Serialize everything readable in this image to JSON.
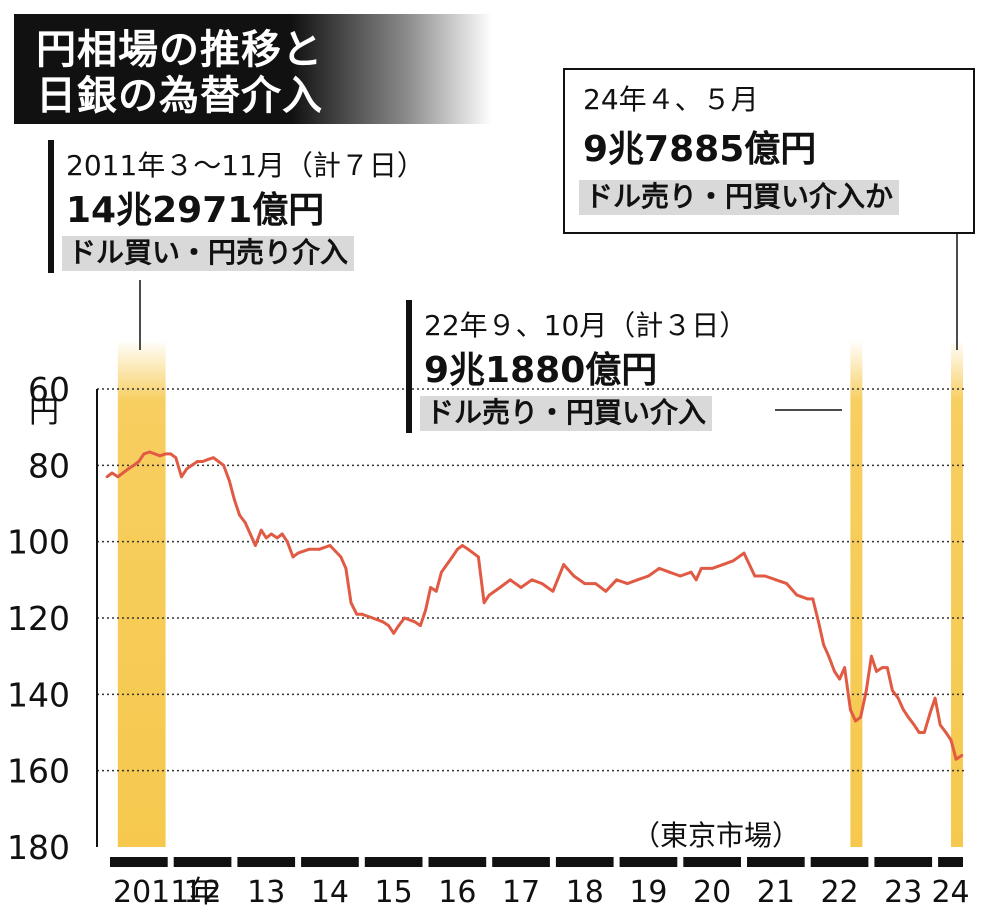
{
  "title": {
    "line1": "円相場の推移と",
    "line2": "日銀の為替介入"
  },
  "annotations": {
    "a2011": {
      "period": "2011年３～11月（計７日）",
      "amount": "14兆2971億円",
      "type": "ドル買い・円売り介入"
    },
    "a2022": {
      "period": "22年９、10月（計３日）",
      "amount": "9兆1880億円",
      "type": "ドル売り・円買い介入"
    },
    "a2024": {
      "period": "24年４、５月",
      "amount": "9兆7885億円",
      "type": "ドル売り・円買い介入か"
    }
  },
  "source": "（東京市場）",
  "colors": {
    "line": "#e05a44",
    "highlight": "#f6c94e",
    "grid": "#333333",
    "text": "#111111"
  },
  "chart_data": {
    "type": "line",
    "title": "円相場の推移と日銀の為替介入",
    "ylabel": "円",
    "ylim": [
      180,
      60
    ],
    "y_inverted": true,
    "yticks": [
      "60",
      "80",
      "100",
      "120",
      "140",
      "160",
      "180"
    ],
    "xticks": [
      "2011年",
      "12",
      "13",
      "14",
      "15",
      "16",
      "17",
      "18",
      "19",
      "20",
      "21",
      "22",
      "23",
      "24"
    ],
    "grid": true,
    "series": [
      {
        "x": [
          2011.0,
          2011.08,
          2011.17,
          2011.25,
          2011.33,
          2011.42,
          2011.5,
          2011.58,
          2011.67,
          2011.75,
          2011.83,
          2011.92,
          2012.0,
          2012.08,
          2012.17,
          2012.25,
          2012.33,
          2012.42,
          2012.5,
          2012.58,
          2012.67,
          2012.75,
          2012.83,
          2012.92,
          2013.0,
          2013.08,
          2013.17,
          2013.25,
          2013.33,
          2013.42,
          2013.5,
          2013.58,
          2013.67,
          2013.75,
          2013.83,
          2013.92,
          2014.0,
          2014.17,
          2014.33,
          2014.5,
          2014.67,
          2014.75,
          2014.83,
          2014.92,
          2015.0,
          2015.17,
          2015.33,
          2015.42,
          2015.5,
          2015.58,
          2015.67,
          2015.83,
          2015.92,
          2016.0,
          2016.08,
          2016.17,
          2016.25,
          2016.42,
          2016.5,
          2016.58,
          2016.67,
          2016.83,
          2016.92,
          2017.0,
          2017.17,
          2017.33,
          2017.5,
          2017.67,
          2017.83,
          2018.0,
          2018.17,
          2018.33,
          2018.5,
          2018.67,
          2018.83,
          2019.0,
          2019.17,
          2019.33,
          2019.5,
          2019.67,
          2019.83,
          2020.0,
          2020.17,
          2020.25,
          2020.33,
          2020.5,
          2020.67,
          2020.83,
          2021.0,
          2021.17,
          2021.33,
          2021.5,
          2021.67,
          2021.83,
          2022.0,
          2022.08,
          2022.17,
          2022.25,
          2022.33,
          2022.42,
          2022.5,
          2022.58,
          2022.67,
          2022.75,
          2022.83,
          2022.92,
          2023.0,
          2023.08,
          2023.17,
          2023.25,
          2023.33,
          2023.42,
          2023.5,
          2023.58,
          2023.67,
          2023.75,
          2023.83,
          2023.92,
          2024.0,
          2024.08,
          2024.17,
          2024.25,
          2024.33,
          2024.42
        ],
        "y": [
          83,
          82,
          83,
          82,
          81,
          80,
          79,
          77,
          76.5,
          77,
          77.5,
          77,
          77,
          78,
          83,
          81,
          80,
          79,
          79,
          78.5,
          78,
          79,
          80,
          84,
          89,
          93,
          95,
          98,
          101,
          97,
          99,
          98,
          99,
          98,
          100,
          104,
          103,
          102,
          102,
          101,
          104,
          107,
          116,
          119,
          119,
          120,
          121,
          122,
          124,
          122,
          120,
          121,
          122,
          118,
          112,
          113,
          108,
          104,
          102,
          101,
          102,
          104,
          116,
          114,
          112,
          110,
          112,
          110,
          111,
          113,
          106,
          109,
          111,
          111,
          113,
          110,
          111,
          110,
          109,
          107,
          108,
          109,
          108,
          110,
          107,
          107,
          106,
          105,
          103,
          109,
          109,
          110,
          111,
          114,
          115,
          115,
          121,
          127,
          130,
          134,
          136,
          133,
          144,
          147,
          146,
          139,
          130,
          134,
          133,
          133,
          139,
          141,
          144,
          146,
          148,
          150,
          150,
          145,
          141,
          148,
          150,
          152,
          157,
          156
        ]
      }
    ],
    "highlights": [
      {
        "label": "2011年３～11月",
        "from": 2011.17,
        "to": 2011.92
      },
      {
        "label": "22年９、10月",
        "from": 2022.67,
        "to": 2022.83
      },
      {
        "label": "24年４、５月",
        "from": 2024.25,
        "to": 2024.42
      }
    ]
  }
}
